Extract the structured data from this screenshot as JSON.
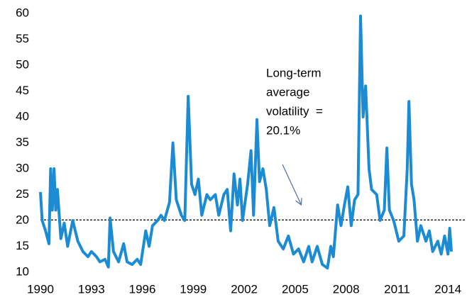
{
  "chart_data": {
    "type": "line",
    "annotation": [
      "Long-term",
      "average",
      "volatility  =",
      "20.1%"
    ],
    "average": 20.1,
    "x": [
      1990.0,
      1990.1,
      1990.3,
      1990.5,
      1990.6,
      1990.7,
      1990.8,
      1990.9,
      1991.0,
      1991.2,
      1991.4,
      1991.6,
      1991.9,
      1992.2,
      1992.5,
      1992.8,
      1993.0,
      1993.3,
      1993.5,
      1993.8,
      1994.0,
      1994.1,
      1994.3,
      1994.6,
      1994.9,
      1995.1,
      1995.4,
      1995.7,
      1995.9,
      1996.2,
      1996.4,
      1996.6,
      1996.9,
      1997.1,
      1997.3,
      1997.6,
      1997.8,
      1998.0,
      1998.3,
      1998.5,
      1998.7,
      1998.9,
      1999.1,
      1999.3,
      1999.5,
      1999.8,
      2000.0,
      2000.3,
      2000.5,
      2000.8,
      2001.0,
      2001.2,
      2001.4,
      2001.6,
      2001.75,
      2001.9,
      2002.2,
      2002.4,
      2002.55,
      2002.75,
      2002.9,
      2003.1,
      2003.3,
      2003.5,
      2003.75,
      2004.0,
      2004.3,
      2004.6,
      2004.9,
      2005.2,
      2005.5,
      2005.8,
      2006.0,
      2006.3,
      2006.6,
      2006.9,
      2007.1,
      2007.25,
      2007.5,
      2007.7,
      2007.9,
      2008.1,
      2008.3,
      2008.5,
      2008.7,
      2008.85,
      2009.0,
      2009.15,
      2009.35,
      2009.5,
      2009.8,
      2010.0,
      2010.25,
      2010.4,
      2010.55,
      2010.8,
      2011.1,
      2011.4,
      2011.6,
      2011.7,
      2011.85,
      2012.0,
      2012.2,
      2012.4,
      2012.7,
      2012.9,
      2013.1,
      2013.4,
      2013.6,
      2013.8,
      2014.0,
      2014.1,
      2014.2
    ],
    "series": [
      {
        "name": "Volatility",
        "color": "#1b8bd3",
        "values": [
          25.5,
          20,
          18,
          15.5,
          30,
          22,
          30,
          22,
          26,
          16.5,
          19.5,
          15,
          20,
          16,
          14,
          13,
          14,
          13,
          12,
          12.5,
          11,
          20.5,
          14,
          12,
          15.5,
          12,
          11.5,
          12.5,
          11.5,
          18,
          15,
          19,
          20,
          21,
          20,
          23.5,
          35,
          24,
          21,
          20,
          44,
          27,
          25,
          28,
          21,
          25,
          24,
          25,
          21,
          25,
          26,
          18,
          29,
          23,
          28,
          20,
          27,
          33.5,
          21,
          39.5,
          27.5,
          30,
          26,
          19,
          22.5,
          16,
          14.5,
          17,
          13.5,
          14.5,
          12,
          15,
          12,
          15,
          11.5,
          10.8,
          15,
          13,
          23,
          19,
          23,
          26.5,
          19,
          24,
          25,
          59.5,
          40,
          46,
          30,
          26,
          25,
          20,
          22,
          34,
          22,
          20,
          16,
          17,
          30,
          43,
          27,
          24,
          16,
          19,
          16,
          18,
          14,
          16,
          13.5,
          17,
          13.5,
          18.5,
          14
        ]
      }
    ],
    "xlim": [
      1990,
      2014.2
    ],
    "ylim": [
      10,
      60
    ],
    "xticks": [
      1990,
      1993,
      1996,
      1999,
      2002,
      2005,
      2008,
      2011,
      2014
    ],
    "yticks": [
      10,
      15,
      20,
      25,
      30,
      35,
      40,
      45,
      50,
      55,
      60
    ]
  }
}
